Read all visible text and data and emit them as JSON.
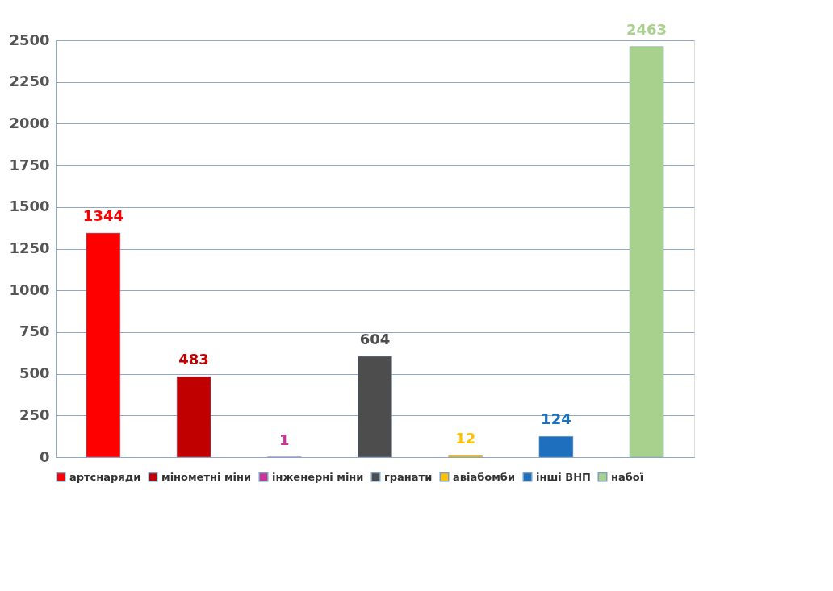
{
  "chart_data": {
    "type": "bar",
    "categories": [
      null,
      null,
      null,
      null,
      null,
      null,
      null
    ],
    "series": [
      {
        "name": "артснаряди",
        "color": "#ff0000",
        "values": [
          1344,
          null,
          null,
          null,
          null,
          null,
          null
        ]
      },
      {
        "name": "мінометні міни",
        "color": "#c00000",
        "values": [
          null,
          483,
          null,
          null,
          null,
          null,
          null
        ]
      },
      {
        "name": "інженерні міни",
        "color": "#cc3399",
        "values": [
          null,
          null,
          1,
          null,
          null,
          null,
          null
        ]
      },
      {
        "name": "гранати",
        "color": "#4d4d4d",
        "values": [
          null,
          null,
          null,
          604,
          null,
          null,
          null
        ]
      },
      {
        "name": "авіабомби",
        "color": "#ffc000",
        "values": [
          null,
          null,
          null,
          null,
          12,
          null,
          null
        ]
      },
      {
        "name": "інші ВНП",
        "color": "#1f6fbf",
        "values": [
          null,
          null,
          null,
          null,
          null,
          124,
          null
        ]
      },
      {
        "name": "набої",
        "color": "#a9d18e",
        "values": [
          null,
          null,
          null,
          null,
          null,
          null,
          2463
        ]
      }
    ],
    "ylim": [
      0,
      2500
    ],
    "yticks": [
      0,
      250,
      500,
      750,
      1000,
      1250,
      1500,
      1750,
      2000,
      2250,
      2500
    ],
    "grid": "y",
    "legend": "bottom",
    "tick_labels": "y",
    "data_labels": true
  }
}
